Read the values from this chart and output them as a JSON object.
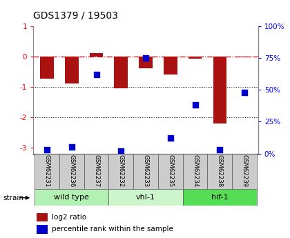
{
  "title": "GDS1379 / 19503",
  "samples": [
    "GSM62231",
    "GSM62236",
    "GSM62237",
    "GSM62232",
    "GSM62233",
    "GSM62235",
    "GSM62234",
    "GSM62238",
    "GSM62239"
  ],
  "log2_ratio": [
    -0.72,
    -0.9,
    0.12,
    -1.05,
    -0.38,
    -0.6,
    -0.08,
    -2.2,
    -0.02
  ],
  "percentile_rank": [
    3,
    5,
    62,
    2,
    75,
    12,
    38,
    3,
    48
  ],
  "groups": [
    {
      "label": "wild type",
      "indices": [
        0,
        1,
        2
      ],
      "color": "#b3f0b3"
    },
    {
      "label": "vhl-1",
      "indices": [
        3,
        4,
        5
      ],
      "color": "#ccf5cc"
    },
    {
      "label": "hif-1",
      "indices": [
        6,
        7,
        8
      ],
      "color": "#55dd55"
    }
  ],
  "ylim_left": [
    -3.2,
    1.0
  ],
  "ylim_right": [
    0,
    100
  ],
  "bar_color": "#aa1111",
  "dot_color": "#0000cc",
  "hline_color": "#cc0000",
  "bar_width": 0.55,
  "dot_size": 28,
  "sample_box_color": "#cccccc",
  "left_yticks": [
    -3,
    -2,
    -1,
    0,
    1
  ],
  "right_yticks": [
    0,
    25,
    50,
    75,
    100
  ],
  "right_yticklabels": [
    "0%",
    "25%",
    "50%",
    "75%",
    "100%"
  ]
}
